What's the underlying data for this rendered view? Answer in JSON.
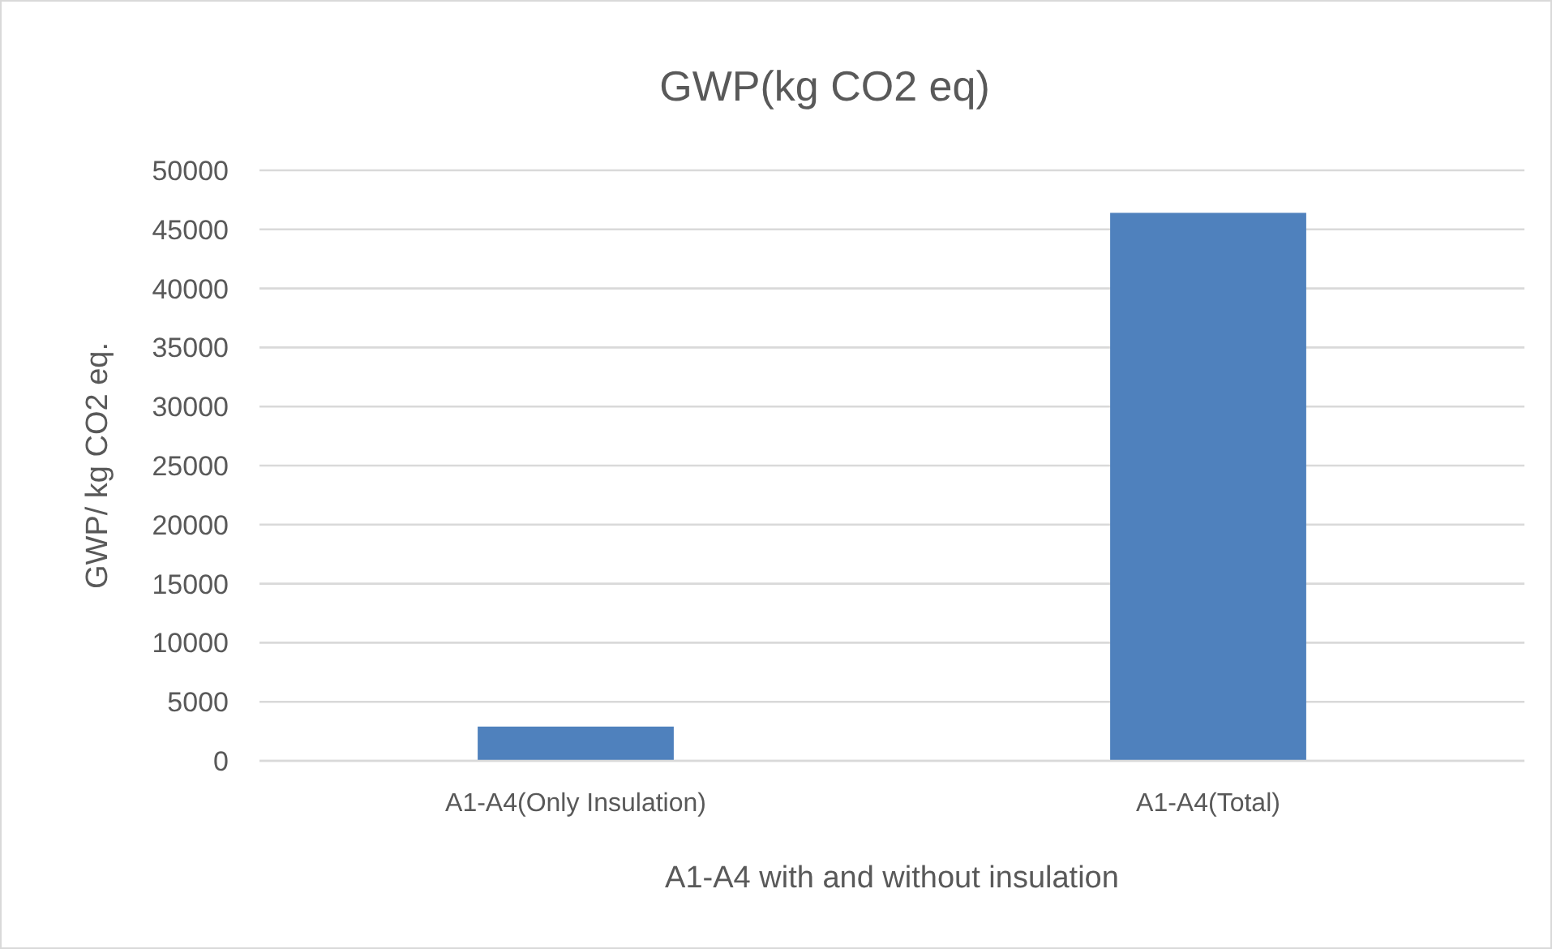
{
  "chart_data": {
    "type": "bar",
    "title": "GWP(kg CO2 eq)",
    "xlabel": "A1-A4 with and without insulation",
    "ylabel": "GWP/ kg CO2 eq.",
    "categories": [
      "A1-A4(Only Insulation)",
      "A1-A4(Total)"
    ],
    "values": [
      2900,
      46400
    ],
    "color": "#4f81bd",
    "ylim": [
      0,
      50000
    ],
    "yticks": [
      0,
      5000,
      10000,
      15000,
      20000,
      25000,
      30000,
      35000,
      40000,
      45000,
      50000
    ],
    "grid": "y"
  }
}
